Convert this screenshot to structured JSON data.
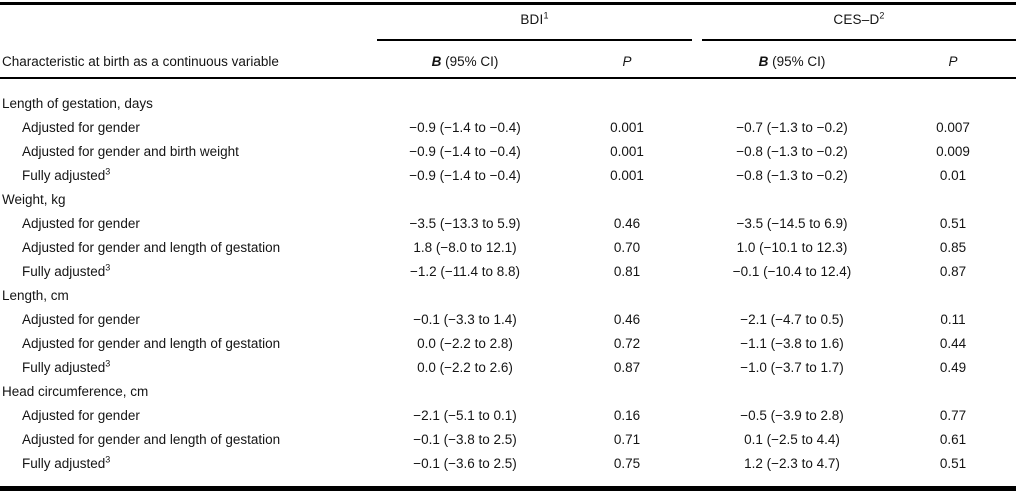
{
  "table": {
    "stub_header": "Characteristic at birth as a continuous variable",
    "groups": [
      {
        "label": "BDI",
        "footnote_mark": "1"
      },
      {
        "label": "CES–D",
        "footnote_mark": "2"
      }
    ],
    "col_headers": {
      "b_symbol": "B",
      "b_rest": " (95% CI)",
      "p_symbol": "P"
    },
    "sections": [
      {
        "title": "Length of gestation, days",
        "rows": [
          {
            "label": "Adjusted for gender",
            "footnote_mark": "",
            "bdi_b": "−0.9 (−1.4 to −0.4)",
            "bdi_p": "0.001",
            "cesd_b": "−0.7 (−1.3 to −0.2)",
            "cesd_p": "0.007"
          },
          {
            "label": "Adjusted for gender and birth weight",
            "footnote_mark": "",
            "bdi_b": "−0.9 (−1.4 to −0.4)",
            "bdi_p": "0.001",
            "cesd_b": "−0.8 (−1.3 to −0.2)",
            "cesd_p": "0.009"
          },
          {
            "label": "Fully adjusted",
            "footnote_mark": "3",
            "bdi_b": "−0.9 (−1.4 to −0.4)",
            "bdi_p": "0.001",
            "cesd_b": "−0.8 (−1.3 to −0.2)",
            "cesd_p": "0.01"
          }
        ]
      },
      {
        "title": "Weight, kg",
        "rows": [
          {
            "label": "Adjusted for gender",
            "footnote_mark": "",
            "bdi_b": "−3.5 (−13.3 to 5.9)",
            "bdi_p": "0.46",
            "cesd_b": "−3.5 (−14.5 to 6.9)",
            "cesd_p": "0.51"
          },
          {
            "label": "Adjusted for gender and length of gestation",
            "footnote_mark": "",
            "bdi_b": "1.8 (−8.0 to 12.1)",
            "bdi_p": "0.70",
            "cesd_b": "1.0 (−10.1 to 12.3)",
            "cesd_p": "0.85"
          },
          {
            "label": "Fully adjusted",
            "footnote_mark": "3",
            "bdi_b": "−1.2 (−11.4 to 8.8)",
            "bdi_p": "0.81",
            "cesd_b": "−0.1 (−10.4 to 12.4)",
            "cesd_p": "0.87"
          }
        ]
      },
      {
        "title": "Length, cm",
        "rows": [
          {
            "label": "Adjusted for gender",
            "footnote_mark": "",
            "bdi_b": "−0.1 (−3.3 to 1.4)",
            "bdi_p": "0.46",
            "cesd_b": "−2.1 (−4.7 to 0.5)",
            "cesd_p": "0.11"
          },
          {
            "label": "Adjusted for gender and length of gestation",
            "footnote_mark": "",
            "bdi_b": "0.0 (−2.2 to 2.8)",
            "bdi_p": "0.72",
            "cesd_b": "−1.1 (−3.8 to 1.6)",
            "cesd_p": "0.44"
          },
          {
            "label": "Fully adjusted",
            "footnote_mark": "3",
            "bdi_b": "0.0 (−2.2 to 2.6)",
            "bdi_p": "0.87",
            "cesd_b": "−1.0 (−3.7 to 1.7)",
            "cesd_p": "0.49"
          }
        ]
      },
      {
        "title": "Head circumference, cm",
        "rows": [
          {
            "label": "Adjusted for gender",
            "footnote_mark": "",
            "bdi_b": "−2.1 (−5.1 to 0.1)",
            "bdi_p": "0.16",
            "cesd_b": "−0.5 (−3.9 to 2.8)",
            "cesd_p": "0.77"
          },
          {
            "label": "Adjusted for gender and length of gestation",
            "footnote_mark": "",
            "bdi_b": "−0.1 (−3.8 to 2.5)",
            "bdi_p": "0.71",
            "cesd_b": "0.1 (−2.5 to 4.4)",
            "cesd_p": "0.61"
          },
          {
            "label": "Fully adjusted",
            "footnote_mark": "3",
            "bdi_b": "−0.1 (−3.6 to 2.5)",
            "bdi_p": "0.75",
            "cesd_b": "1.2 (−2.3 to 4.7)",
            "cesd_p": "0.51"
          }
        ]
      }
    ]
  }
}
